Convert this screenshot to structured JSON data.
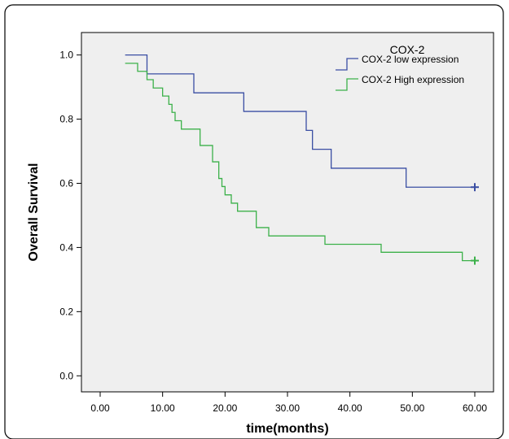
{
  "chart_data": {
    "type": "line",
    "subtype": "kaplan-meier step",
    "xlabel": "time(months)",
    "ylabel": "Overall Survival",
    "xlim": [
      -3,
      63
    ],
    "ylim": [
      -0.05,
      1.07
    ],
    "x_ticks": [
      "0.00",
      "10.00",
      "20.00",
      "30.00",
      "40.00",
      "50.00",
      "60.00"
    ],
    "x_tick_values": [
      0,
      10,
      20,
      30,
      40,
      50,
      60
    ],
    "y_ticks": [
      "0.0",
      "0.2",
      "0.4",
      "0.6",
      "0.8",
      "1.0"
    ],
    "y_tick_values": [
      0,
      0.2,
      0.4,
      0.6,
      0.8,
      1.0
    ],
    "grid": false,
    "legend": {
      "title": "COX-2",
      "placement": "top-right",
      "entries": [
        "COX-2 low expression",
        "COX-2 High expression"
      ]
    },
    "series": [
      {
        "name": "COX-2 low expression",
        "color": "#3a4ea3",
        "steps": [
          [
            4,
            1.0
          ],
          [
            7.5,
            0.941
          ],
          [
            15,
            0.882
          ],
          [
            23,
            0.824
          ],
          [
            33,
            0.765
          ],
          [
            34,
            0.706
          ],
          [
            37,
            0.647
          ],
          [
            49,
            0.588
          ],
          [
            60,
            0.588
          ]
        ],
        "censored": [
          [
            60,
            0.588
          ]
        ]
      },
      {
        "name": "COX-2 High expression",
        "color": "#3cb14a",
        "steps": [
          [
            4,
            0.974
          ],
          [
            6,
            0.949
          ],
          [
            7.5,
            0.923
          ],
          [
            8.5,
            0.897
          ],
          [
            10,
            0.872
          ],
          [
            11,
            0.846
          ],
          [
            11.5,
            0.821
          ],
          [
            12,
            0.795
          ],
          [
            13,
            0.769
          ],
          [
            16,
            0.718
          ],
          [
            18,
            0.667
          ],
          [
            19,
            0.615
          ],
          [
            19.5,
            0.59
          ],
          [
            20,
            0.564
          ],
          [
            21,
            0.538
          ],
          [
            22,
            0.513
          ],
          [
            25,
            0.462
          ],
          [
            27,
            0.436
          ],
          [
            36,
            0.41
          ],
          [
            45,
            0.385
          ],
          [
            58,
            0.359
          ],
          [
            60,
            0.359
          ]
        ],
        "censored": [
          [
            60,
            0.359
          ]
        ]
      }
    ]
  }
}
